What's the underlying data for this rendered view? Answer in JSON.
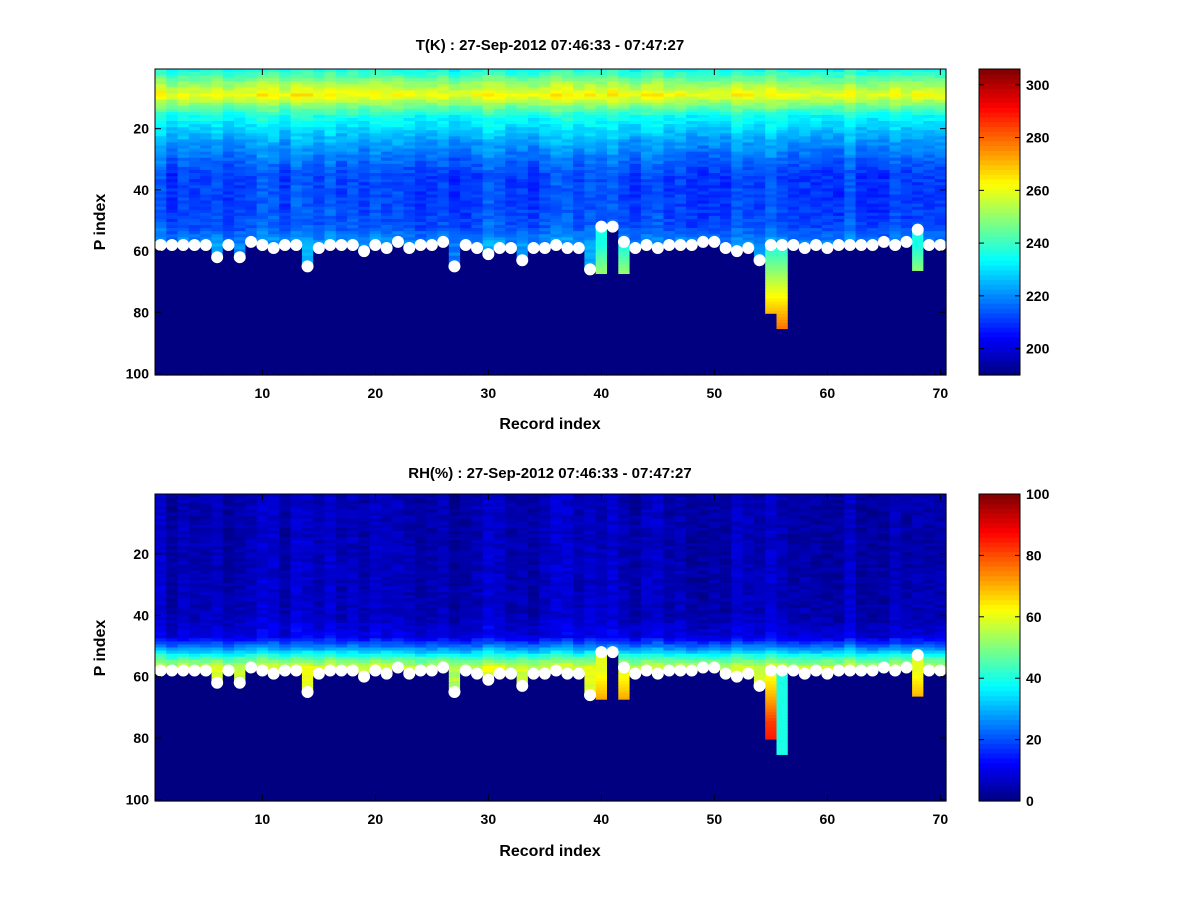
{
  "chart_data": [
    {
      "type": "heatmap",
      "title": "T(K) : 27-Sep-2012 07:46:33 - 07:47:27",
      "xlabel": "Record index",
      "ylabel": "P index",
      "xlim": [
        0.5,
        70.5
      ],
      "ylim": [
        0.5,
        100.5
      ],
      "y_reversed": true,
      "xticks": [
        10,
        20,
        30,
        40,
        50,
        60,
        70
      ],
      "yticks": [
        20,
        40,
        60,
        80,
        100
      ],
      "colormap": "jet",
      "clim": [
        190,
        306
      ],
      "colorbar_ticks": [
        200,
        220,
        240,
        260,
        280,
        300
      ],
      "variable": "T",
      "marker_color": "#ffffff",
      "surface_p_index": [
        58,
        58,
        58,
        58,
        58,
        62,
        58,
        62,
        57,
        58,
        59,
        58,
        58,
        65,
        59,
        58,
        58,
        58,
        60,
        58,
        59,
        57,
        59,
        58,
        58,
        57,
        65,
        58,
        59,
        61,
        59,
        59,
        63,
        59,
        59,
        58,
        59,
        59,
        66,
        52,
        52,
        57,
        59,
        58,
        59,
        58,
        58,
        58,
        57,
        57,
        59,
        60,
        59,
        63,
        58,
        58,
        58,
        59,
        58,
        59,
        58,
        58,
        58,
        58,
        57,
        58,
        57,
        53,
        58,
        58
      ],
      "bottom_p_index": [
        58,
        58,
        58,
        58,
        58,
        62,
        58,
        62,
        57,
        58,
        59,
        58,
        58,
        65,
        59,
        58,
        58,
        58,
        60,
        58,
        59,
        57,
        59,
        58,
        58,
        57,
        65,
        58,
        59,
        61,
        59,
        59,
        63,
        59,
        59,
        58,
        59,
        59,
        66,
        67,
        52,
        67,
        59,
        58,
        59,
        58,
        58,
        58,
        57,
        57,
        59,
        60,
        59,
        63,
        80,
        85,
        58,
        59,
        58,
        59,
        58,
        58,
        58,
        58,
        57,
        58,
        57,
        66,
        58,
        58
      ],
      "profile_points": [
        {
          "p": 1,
          "value": 236
        },
        {
          "p": 5,
          "value": 250
        },
        {
          "p": 9,
          "value": 262
        },
        {
          "p": 12,
          "value": 250
        },
        {
          "p": 16,
          "value": 235
        },
        {
          "p": 25,
          "value": 222
        },
        {
          "p": 35,
          "value": 212
        },
        {
          "p": 45,
          "value": 212
        },
        {
          "p": 52,
          "value": 214
        },
        {
          "p": 58,
          "value": 222
        }
      ],
      "deep_profile_points": [
        {
          "p": 58,
          "value": 236
        },
        {
          "p": 70,
          "value": 255
        },
        {
          "p": 85,
          "value": 278
        }
      ],
      "below_ground_value": 190
    },
    {
      "type": "heatmap",
      "title": "RH(%) : 27-Sep-2012 07:46:33 - 07:47:27",
      "xlabel": "Record index",
      "ylabel": "P index",
      "xlim": [
        0.5,
        70.5
      ],
      "ylim": [
        0.5,
        100.5
      ],
      "y_reversed": true,
      "xticks": [
        10,
        20,
        30,
        40,
        50,
        60,
        70
      ],
      "yticks": [
        20,
        40,
        60,
        80,
        100
      ],
      "colormap": "jet",
      "clim": [
        0,
        100
      ],
      "colorbar_ticks": [
        0,
        20,
        40,
        60,
        80,
        100
      ],
      "variable": "RH",
      "marker_color": "#ffffff",
      "surface_p_index": [
        58,
        58,
        58,
        58,
        58,
        62,
        58,
        62,
        57,
        58,
        59,
        58,
        58,
        65,
        59,
        58,
        58,
        58,
        60,
        58,
        59,
        57,
        59,
        58,
        58,
        57,
        65,
        58,
        59,
        61,
        59,
        59,
        63,
        59,
        59,
        58,
        59,
        59,
        66,
        52,
        52,
        57,
        59,
        58,
        59,
        58,
        58,
        58,
        57,
        57,
        59,
        60,
        59,
        63,
        58,
        58,
        58,
        59,
        58,
        59,
        58,
        58,
        58,
        58,
        57,
        58,
        57,
        53,
        58,
        58
      ],
      "bottom_p_index": [
        58,
        58,
        58,
        58,
        58,
        62,
        58,
        62,
        57,
        58,
        59,
        58,
        58,
        65,
        59,
        58,
        58,
        58,
        60,
        58,
        59,
        57,
        59,
        58,
        58,
        57,
        65,
        58,
        59,
        61,
        59,
        59,
        63,
        59,
        59,
        58,
        59,
        59,
        66,
        67,
        52,
        67,
        59,
        58,
        59,
        58,
        58,
        58,
        57,
        57,
        59,
        60,
        59,
        63,
        80,
        85,
        58,
        59,
        58,
        59,
        58,
        58,
        58,
        58,
        57,
        58,
        57,
        66,
        58,
        58
      ],
      "profile_points": [
        {
          "p": 1,
          "value": 5
        },
        {
          "p": 40,
          "value": 6
        },
        {
          "p": 47,
          "value": 10
        },
        {
          "p": 51,
          "value": 28
        },
        {
          "p": 54,
          "value": 45
        },
        {
          "p": 57,
          "value": 58
        }
      ],
      "deep_profile_points": [
        {
          "p": 58,
          "value": 60
        },
        {
          "p": 65,
          "value": 68
        },
        {
          "p": 75,
          "value": 82
        },
        {
          "p": 85,
          "value": 88
        }
      ],
      "column_overrides": [
        {
          "record": 56,
          "value": 40
        }
      ],
      "below_ground_value": 0
    }
  ]
}
